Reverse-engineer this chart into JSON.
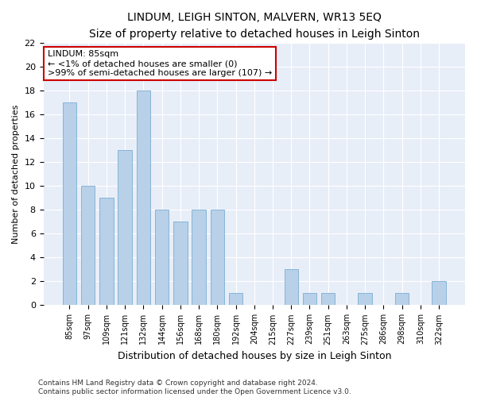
{
  "title1": "LINDUM, LEIGH SINTON, MALVERN, WR13 5EQ",
  "title2": "Size of property relative to detached houses in Leigh Sinton",
  "xlabel": "Distribution of detached houses by size in Leigh Sinton",
  "ylabel": "Number of detached properties",
  "categories": [
    "85sqm",
    "97sqm",
    "109sqm",
    "121sqm",
    "132sqm",
    "144sqm",
    "156sqm",
    "168sqm",
    "180sqm",
    "192sqm",
    "204sqm",
    "215sqm",
    "227sqm",
    "239sqm",
    "251sqm",
    "263sqm",
    "275sqm",
    "286sqm",
    "298sqm",
    "310sqm",
    "322sqm"
  ],
  "values": [
    17,
    10,
    9,
    13,
    18,
    8,
    7,
    8,
    8,
    1,
    0,
    0,
    3,
    1,
    1,
    0,
    1,
    0,
    1,
    0,
    2
  ],
  "bar_color": "#b8d0e8",
  "bar_edge_color": "#7aafd4",
  "annotation_text": "LINDUM: 85sqm\n← <1% of detached houses are smaller (0)\n>99% of semi-detached houses are larger (107) →",
  "annotation_box_color": "#ffffff",
  "annotation_box_edge_color": "#cc0000",
  "ylim": [
    0,
    22
  ],
  "yticks": [
    0,
    2,
    4,
    6,
    8,
    10,
    12,
    14,
    16,
    18,
    20,
    22
  ],
  "footer1": "Contains HM Land Registry data © Crown copyright and database right 2024.",
  "footer2": "Contains public sector information licensed under the Open Government Licence v3.0.",
  "bg_color": "#ffffff",
  "plot_bg_color": "#e8eef8",
  "grid_color": "#ffffff",
  "title1_fontsize": 10,
  "title2_fontsize": 9,
  "xlabel_fontsize": 9,
  "ylabel_fontsize": 8,
  "tick_fontsize": 8,
  "xtick_fontsize": 7,
  "footer_fontsize": 6.5,
  "annot_fontsize": 8
}
